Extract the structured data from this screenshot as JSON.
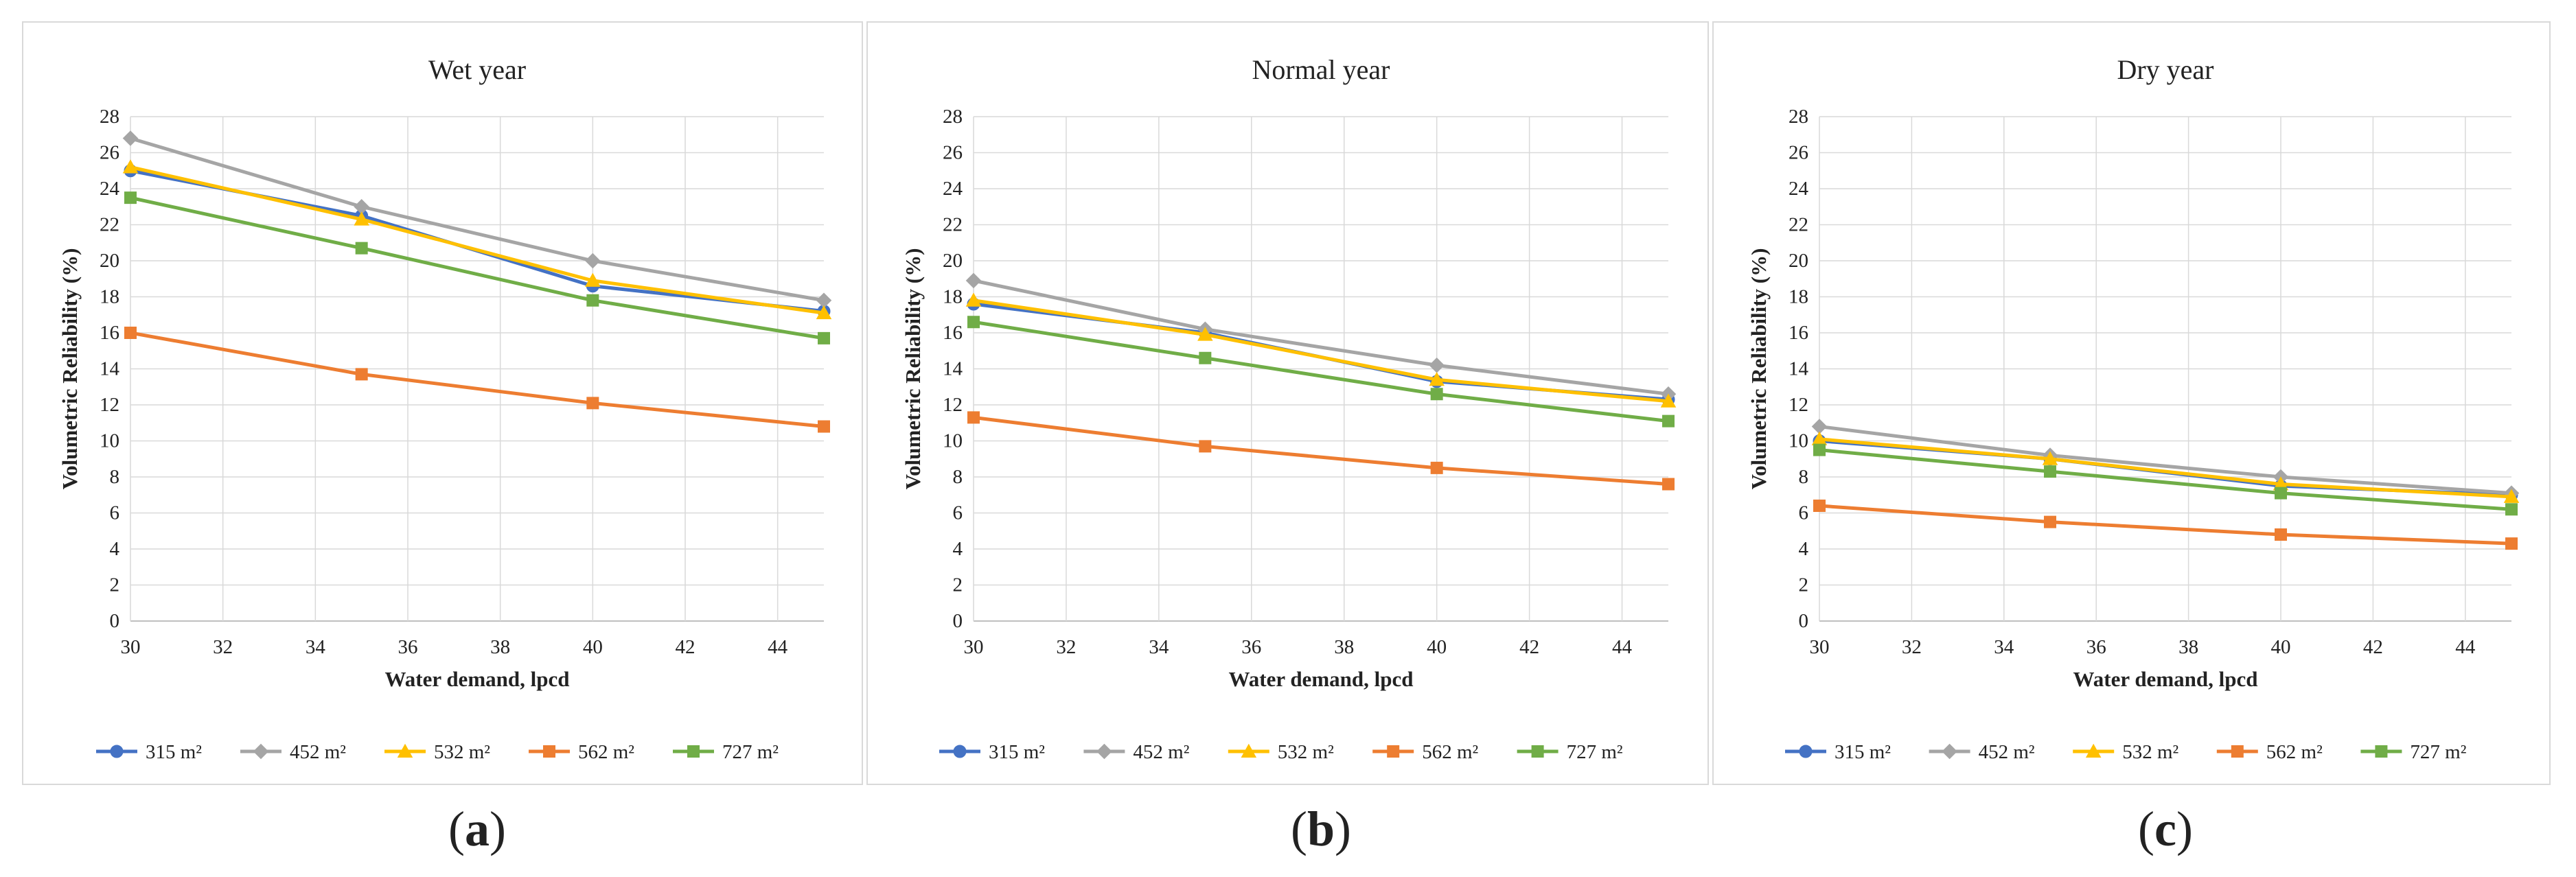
{
  "chart_data": [
    {
      "type": "line",
      "title": "Wet year",
      "xlabel": "Water demand, lpcd",
      "ylabel": "Volumetric  Reliability  (%)",
      "xlim": [
        30,
        45
      ],
      "ylim": [
        0,
        28
      ],
      "xticks": [
        30,
        32,
        34,
        36,
        38,
        40,
        42,
        44
      ],
      "yticks": [
        0,
        2,
        4,
        6,
        8,
        10,
        12,
        14,
        16,
        18,
        20,
        22,
        24,
        26,
        28
      ],
      "grid": true,
      "legend_position": "bottom",
      "panel_label": "(a)",
      "x": [
        30,
        35,
        40,
        45
      ],
      "series": [
        {
          "name": "315 m²",
          "color": "#4472C4",
          "marker": "circle",
          "values": [
            25.0,
            22.5,
            18.6,
            17.2
          ]
        },
        {
          "name": "452 m²",
          "color": "#A5A5A5",
          "marker": "diamond",
          "values": [
            26.8,
            23.0,
            20.0,
            17.8
          ]
        },
        {
          "name": "532 m²",
          "color": "#FFC000",
          "marker": "triangle",
          "values": [
            25.2,
            22.3,
            18.9,
            17.1
          ]
        },
        {
          "name": "562 m²",
          "color": "#ED7D31",
          "marker": "square",
          "values": [
            16.0,
            13.7,
            12.1,
            10.8
          ]
        },
        {
          "name": "727 m²",
          "color": "#70AD47",
          "marker": "square",
          "values": [
            23.5,
            20.7,
            17.8,
            15.7
          ]
        }
      ]
    },
    {
      "type": "line",
      "title": "Normal  year",
      "xlabel": "Water demand, lpcd",
      "ylabel": "Volumetric  Reliability  (%)",
      "xlim": [
        30,
        45
      ],
      "ylim": [
        0,
        28
      ],
      "xticks": [
        30,
        32,
        34,
        36,
        38,
        40,
        42,
        44
      ],
      "yticks": [
        0,
        2,
        4,
        6,
        8,
        10,
        12,
        14,
        16,
        18,
        20,
        22,
        24,
        26,
        28
      ],
      "grid": true,
      "legend_position": "bottom",
      "panel_label": "(b)",
      "x": [
        30,
        35,
        40,
        45
      ],
      "series": [
        {
          "name": "315 m²",
          "color": "#4472C4",
          "marker": "circle",
          "values": [
            17.6,
            16.0,
            13.3,
            12.3
          ]
        },
        {
          "name": "452 m²",
          "color": "#A5A5A5",
          "marker": "diamond",
          "values": [
            18.9,
            16.2,
            14.2,
            12.6
          ]
        },
        {
          "name": "532 m²",
          "color": "#FFC000",
          "marker": "triangle",
          "values": [
            17.8,
            15.9,
            13.4,
            12.2
          ]
        },
        {
          "name": "562 m²",
          "color": "#ED7D31",
          "marker": "square",
          "values": [
            11.3,
            9.7,
            8.5,
            7.6
          ]
        },
        {
          "name": "727 m²",
          "color": "#70AD47",
          "marker": "square",
          "values": [
            16.6,
            14.6,
            12.6,
            11.1
          ]
        }
      ]
    },
    {
      "type": "line",
      "title": "Dry year",
      "xlabel": "Water demand, lpcd",
      "ylabel": "Volumetric  Reliability  (%)",
      "xlim": [
        30,
        45
      ],
      "ylim": [
        0,
        28
      ],
      "xticks": [
        30,
        32,
        34,
        36,
        38,
        40,
        42,
        44
      ],
      "yticks": [
        0,
        2,
        4,
        6,
        8,
        10,
        12,
        14,
        16,
        18,
        20,
        22,
        24,
        26,
        28
      ],
      "grid": true,
      "legend_position": "bottom",
      "panel_label": "(c)",
      "x": [
        30,
        35,
        40,
        45
      ],
      "series": [
        {
          "name": "315 m²",
          "color": "#4472C4",
          "marker": "circle",
          "values": [
            10.0,
            9.0,
            7.5,
            7.0
          ]
        },
        {
          "name": "452 m²",
          "color": "#A5A5A5",
          "marker": "diamond",
          "values": [
            10.8,
            9.2,
            8.0,
            7.1
          ]
        },
        {
          "name": "532 m²",
          "color": "#FFC000",
          "marker": "triangle",
          "values": [
            10.1,
            9.0,
            7.6,
            6.9
          ]
        },
        {
          "name": "562 m²",
          "color": "#ED7D31",
          "marker": "square",
          "values": [
            6.4,
            5.5,
            4.8,
            4.3
          ]
        },
        {
          "name": "727 m²",
          "color": "#70AD47",
          "marker": "square",
          "values": [
            9.5,
            8.3,
            7.1,
            6.2
          ]
        }
      ]
    }
  ]
}
